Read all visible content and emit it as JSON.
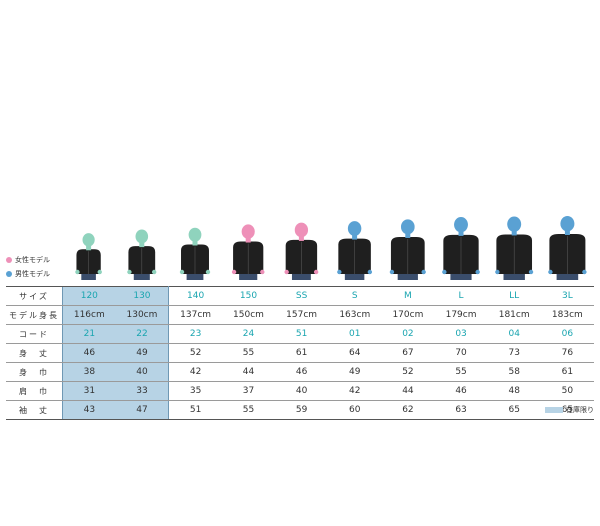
{
  "legend": {
    "female": "女性モデル",
    "male": "男性モデル"
  },
  "colors": {
    "female": "#ee90b8",
    "male": "#5aa1d3",
    "kids": "#8fd3bd",
    "stock": "#b7d3e5",
    "cyan_text": "#1aa5b0"
  },
  "models": [
    {
      "size": "120",
      "type": "kids"
    },
    {
      "size": "130",
      "type": "kids"
    },
    {
      "size": "140",
      "type": "kids"
    },
    {
      "size": "150",
      "type": "female"
    },
    {
      "size": "SS",
      "type": "female"
    },
    {
      "size": "S",
      "type": "male"
    },
    {
      "size": "M",
      "type": "male"
    },
    {
      "size": "L",
      "type": "male"
    },
    {
      "size": "LL",
      "type": "male"
    },
    {
      "size": "3L",
      "type": "male"
    }
  ],
  "model_heights_cm": [
    116,
    130,
    137,
    150,
    157,
    163,
    170,
    179,
    181,
    183
  ],
  "table": {
    "rows": [
      {
        "label": "サイズ",
        "values": [
          "120",
          "130",
          "140",
          "150",
          "SS",
          "S",
          "M",
          "L",
          "LL",
          "3L"
        ],
        "cyan": true
      },
      {
        "label": "モデル身長",
        "values": [
          "116cm",
          "130cm",
          "137cm",
          "150cm",
          "157cm",
          "163cm",
          "170cm",
          "179cm",
          "181cm",
          "183cm"
        ],
        "cyan": false
      },
      {
        "label": "コード",
        "values": [
          "21",
          "22",
          "23",
          "24",
          "51",
          "01",
          "02",
          "03",
          "04",
          "06"
        ],
        "cyan": true
      },
      {
        "label": "身　丈",
        "values": [
          "46",
          "49",
          "52",
          "55",
          "61",
          "64",
          "67",
          "70",
          "73",
          "76"
        ],
        "cyan": false
      },
      {
        "label": "身　巾",
        "values": [
          "38",
          "40",
          "42",
          "44",
          "46",
          "49",
          "52",
          "55",
          "58",
          "61"
        ],
        "cyan": false
      },
      {
        "label": "肩　巾",
        "values": [
          "31",
          "33",
          "35",
          "37",
          "40",
          "42",
          "44",
          "46",
          "48",
          "50"
        ],
        "cyan": false
      },
      {
        "label": "袖　丈",
        "values": [
          "43",
          "47",
          "51",
          "55",
          "59",
          "60",
          "62",
          "63",
          "65",
          "65"
        ],
        "cyan": false
      }
    ],
    "in_stock_columns": [
      0,
      1
    ]
  },
  "stock_legend": "在庫限り"
}
